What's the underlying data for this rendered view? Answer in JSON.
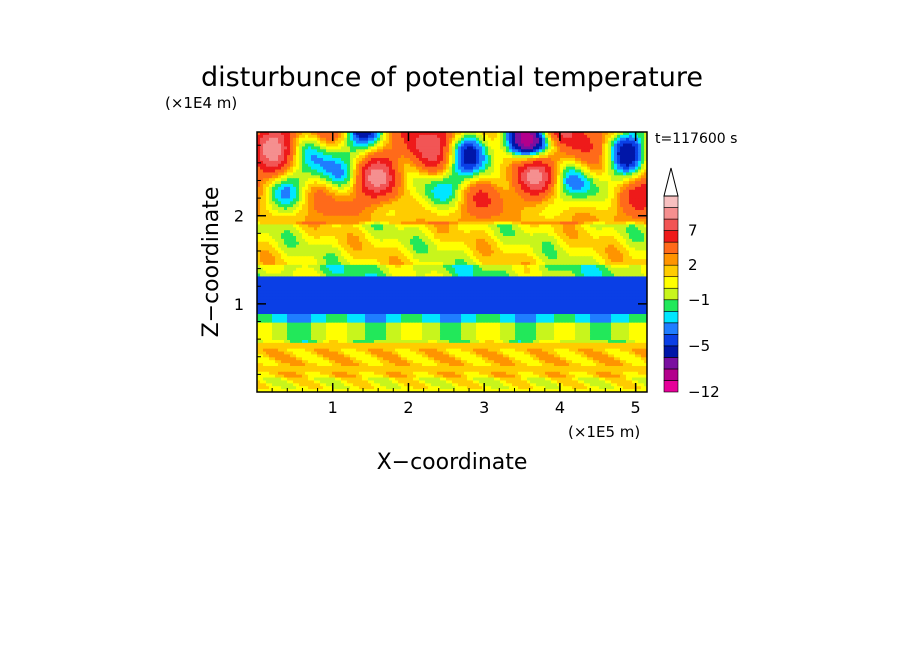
{
  "chart_data": {
    "type": "heatmap",
    "title": "disturbunce of potential temperature",
    "time_label": "t=117600 s",
    "xlabel": "X−coordinate",
    "ylabel": "Z−coordinate",
    "x_unit": "(×1E5 m)",
    "y_unit": "(×1E4 m)",
    "xlim": [
      0,
      5.15
    ],
    "ylim": [
      0,
      2.95
    ],
    "x_ticks": [
      "1",
      "2",
      "3",
      "4",
      "5"
    ],
    "y_ticks": [
      "1",
      "2"
    ],
    "colorbar": {
      "labels": [
        "−12",
        "−5",
        "−1",
        "2",
        "7"
      ],
      "colors": [
        "#e60099",
        "#b3008c",
        "#7a0fa0",
        "#0016a8",
        "#0a3fe6",
        "#1f7dff",
        "#00e6ff",
        "#22e85a",
        "#c8f51c",
        "#ffff00",
        "#ffcc00",
        "#ff9400",
        "#ff6a1a",
        "#ee1a1a",
        "#f25555",
        "#f58f8f",
        "#f7c0c0"
      ],
      "extend": "max"
    },
    "field_description_levels": "Z (×1E4 m) bands, theta' sign",
    "bands": [
      {
        "z": [
          0.0,
          0.15
        ],
        "value": 0.5
      },
      {
        "z": [
          0.15,
          0.55
        ],
        "value": 1.5
      },
      {
        "z": [
          0.55,
          0.78
        ],
        "value": -0.5
      },
      {
        "z": [
          0.78,
          0.9
        ],
        "value": -2.5
      },
      {
        "z": [
          0.9,
          1.3
        ],
        "value": -4.5
      },
      {
        "z": [
          1.3,
          1.45
        ],
        "value": -0.8
      },
      {
        "z": [
          1.45,
          1.9
        ],
        "value": 0.5
      },
      {
        "z": [
          1.9,
          2.95
        ],
        "value": 2.0
      }
    ]
  }
}
